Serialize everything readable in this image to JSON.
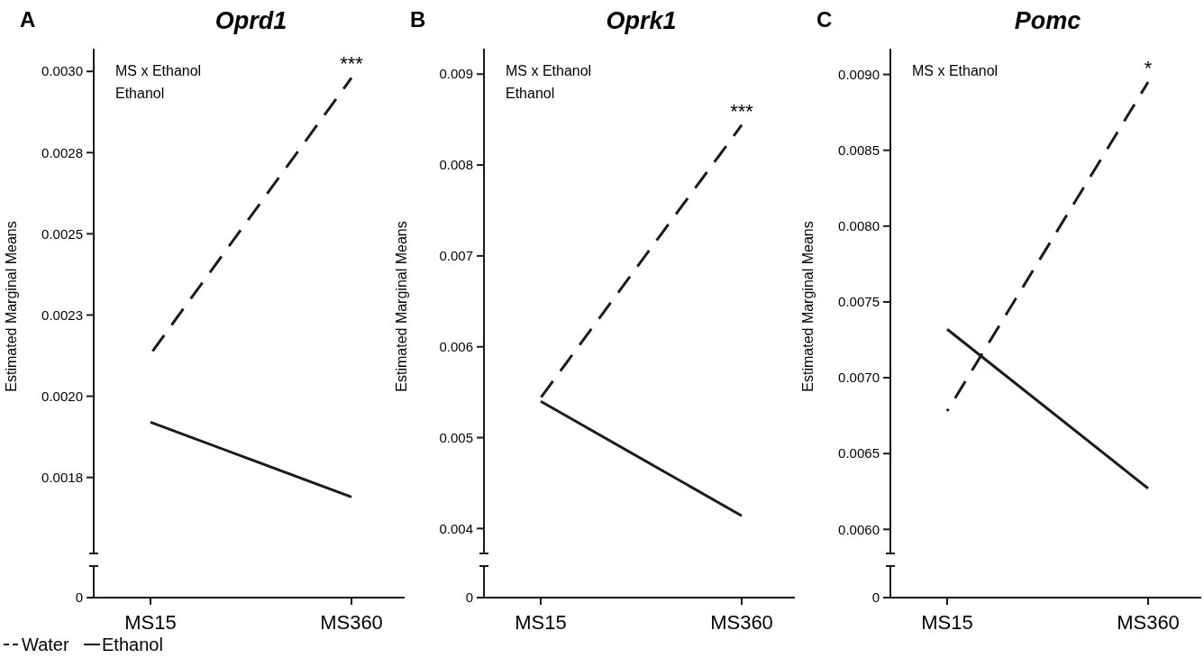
{
  "chart_data": [
    {
      "type": "line",
      "title": "Oprd1",
      "ylabel": "Estimated Marginal Means",
      "categories": [
        "MS15",
        "MS360"
      ],
      "series": [
        {
          "name": "Water",
          "color": "#1a1a1a",
          "line_style": "dashed",
          "values": [
            0.00213,
            0.00298
          ]
        },
        {
          "name": "Ethanol",
          "color": "#1a1a1a",
          "line_style": "solid",
          "values": [
            0.00192,
            0.00169
          ]
        }
      ],
      "ylim": [
        0.00138,
        0.00307
      ],
      "yticks": [
        {
          "value": 0.00138,
          "label": "0"
        },
        {
          "value": 0.00175,
          "label": "0.0018"
        },
        {
          "value": 0.002,
          "label": "0.0020"
        },
        {
          "value": 0.00225,
          "label": "0.0023"
        },
        {
          "value": 0.0025,
          "label": "0.0025"
        },
        {
          "value": 0.00275,
          "label": "0.0028"
        },
        {
          "value": 0.003,
          "label": "0.0030"
        }
      ],
      "legend": "bottom left",
      "annotations": [
        "A",
        "MS x Ethanol",
        "Ethanol",
        {
          "text": "***",
          "x": "MS360",
          "y": 0.00298
        }
      ]
    },
    {
      "type": "line",
      "title": "Oprk1",
      "ylabel": "Estimated Marginal Means",
      "categories": [
        "MS15",
        "MS360"
      ],
      "series": [
        {
          "color": "#1a1a1a",
          "line_style": "dashed",
          "values": [
            0.00544,
            0.00844
          ]
        },
        {
          "color": "#1a1a1a",
          "line_style": "solid",
          "values": [
            0.0054,
            0.00414
          ]
        }
      ],
      "ylim": [
        0.00324,
        0.00928
      ],
      "yticks": [
        {
          "value": 0.00324,
          "label": "0"
        },
        {
          "value": 0.004,
          "label": "0.004"
        },
        {
          "value": 0.005,
          "label": "0.005"
        },
        {
          "value": 0.006,
          "label": "0.006"
        },
        {
          "value": 0.007,
          "label": "0.007"
        },
        {
          "value": 0.008,
          "label": "0.008"
        },
        {
          "value": 0.009,
          "label": "0.009"
        }
      ],
      "annotations": [
        "B",
        "MS x Ethanol",
        "Ethanol",
        {
          "text": "***",
          "x": "MS360",
          "y": 0.00844
        }
      ]
    },
    {
      "type": "line",
      "title": "Pomc",
      "ylabel": "Estimated Marginal Means",
      "categories": [
        "MS15",
        "MS360"
      ],
      "series": [
        {
          "color": "#1a1a1a",
          "line_style": "dashed",
          "values": [
            0.00678,
            0.00895
          ]
        },
        {
          "color": "#1a1a1a",
          "line_style": "solid",
          "values": [
            0.00732,
            0.00627
          ]
        }
      ],
      "ylim": [
        0.00555,
        0.00917
      ],
      "yticks": [
        {
          "value": 0.00555,
          "label": "0"
        },
        {
          "value": 0.006,
          "label": "0.0060"
        },
        {
          "value": 0.0065,
          "label": "0.0065"
        },
        {
          "value": 0.007,
          "label": "0.0070"
        },
        {
          "value": 0.0075,
          "label": "0.0075"
        },
        {
          "value": 0.008,
          "label": "0.0080"
        },
        {
          "value": 0.0085,
          "label": "0.0085"
        },
        {
          "value": 0.009,
          "label": "0.0090"
        }
      ],
      "annotations": [
        "C",
        "MS x Ethanol",
        {
          "text": "*",
          "x": "MS360",
          "y": 0.00895
        }
      ]
    }
  ]
}
